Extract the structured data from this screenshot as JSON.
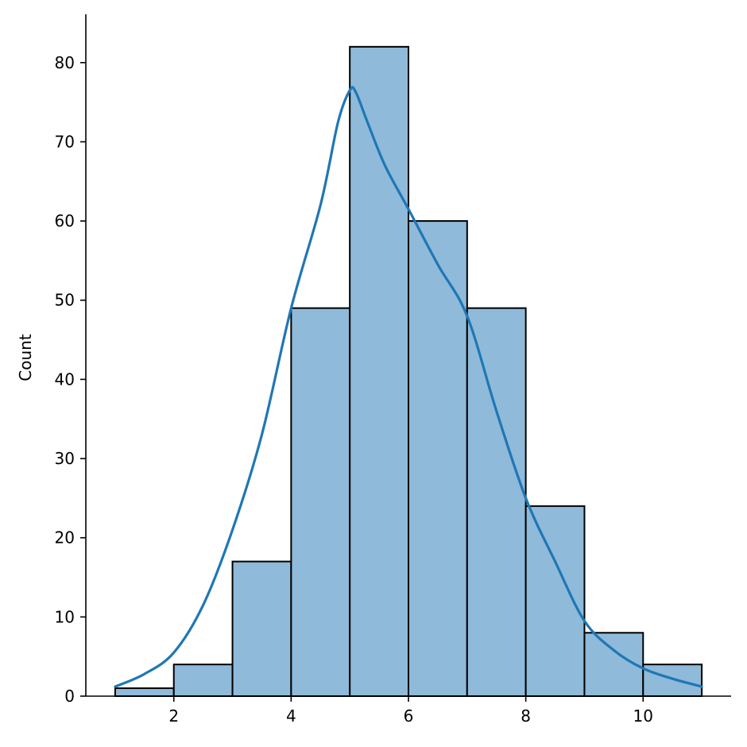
{
  "chart_data": {
    "type": "bar",
    "subtype": "histogram-with-kde",
    "title": "",
    "xlabel": "",
    "ylabel": "Count",
    "xlim": [
      0.5,
      11.5
    ],
    "ylim": [
      0,
      86.1
    ],
    "xticks": [
      2,
      4,
      6,
      8,
      10
    ],
    "yticks": [
      0,
      10,
      20,
      30,
      40,
      50,
      60,
      70,
      80
    ],
    "bins": [
      {
        "start": 1,
        "end": 2,
        "count": 1
      },
      {
        "start": 2,
        "end": 3,
        "count": 4
      },
      {
        "start": 3,
        "end": 4,
        "count": 17
      },
      {
        "start": 4,
        "end": 5,
        "count": 49
      },
      {
        "start": 5,
        "end": 6,
        "count": 82
      },
      {
        "start": 6,
        "end": 7,
        "count": 60
      },
      {
        "start": 7,
        "end": 8,
        "count": 49
      },
      {
        "start": 8,
        "end": 9,
        "count": 24
      },
      {
        "start": 9,
        "end": 10,
        "count": 8
      },
      {
        "start": 10,
        "end": 11,
        "count": 4
      }
    ],
    "kde": {
      "x": [
        1.0,
        1.5,
        2.0,
        2.5,
        3.0,
        3.5,
        4.0,
        4.5,
        4.8,
        5.0,
        5.1,
        5.3,
        5.6,
        6.0,
        6.5,
        7.0,
        7.5,
        8.0,
        8.5,
        9.0,
        9.5,
        10.0,
        10.5,
        11.0
      ],
      "y": [
        1.2,
        2.8,
        5.5,
        11.5,
        21.0,
        33.0,
        49.0,
        62.0,
        72.5,
        76.5,
        76.3,
        72.5,
        67.0,
        61.5,
        54.5,
        48.0,
        36.0,
        25.0,
        17.0,
        9.5,
        5.8,
        3.5,
        2.2,
        1.2
      ]
    },
    "grid": false,
    "legend": "none",
    "colors": {
      "bar_fill": "#8fbad9",
      "bar_edge": "#000000",
      "kde_line": "#1f77b4",
      "axis": "#000000"
    }
  }
}
